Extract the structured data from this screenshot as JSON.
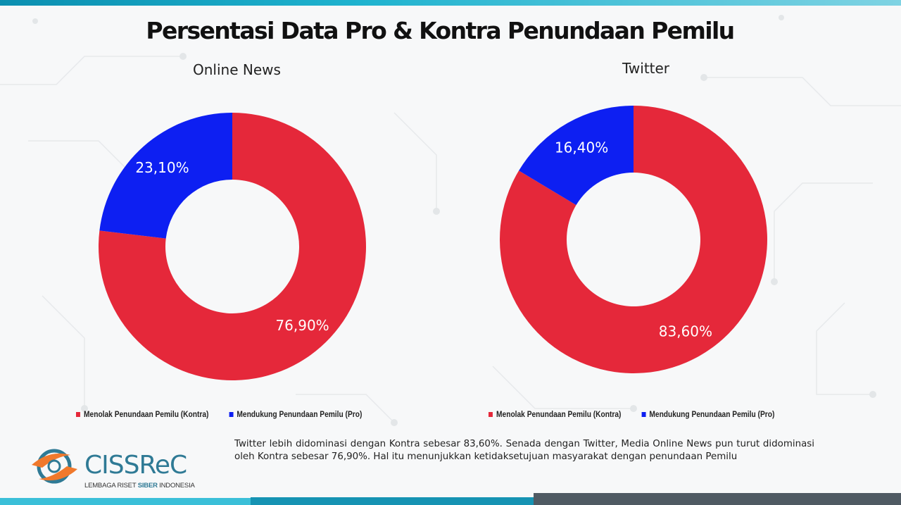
{
  "title": "Persentasi Data Pro & Kontra Penundaan Pemilu",
  "colors": {
    "kontra": "#e5283a",
    "pro": "#0d1ff2"
  },
  "legend": {
    "kontra": "Menolak Penundaan Pemilu (Kontra)",
    "pro": "Mendukung Penundaan Pemilu (Pro)"
  },
  "chart_data": [
    {
      "type": "pie",
      "title": "Online News",
      "categories": [
        "Menolak Penundaan Pemilu (Kontra)",
        "Mendukung Penundaan Pemilu (Pro)"
      ],
      "values": [
        76.9,
        23.1
      ],
      "labels": [
        "76,90%",
        "23,10%"
      ],
      "legend_position": "bottom"
    },
    {
      "type": "pie",
      "title": "Twitter",
      "categories": [
        "Menolak Penundaan Pemilu (Kontra)",
        "Mendukung Penundaan Pemilu (Pro)"
      ],
      "values": [
        83.6,
        16.4
      ],
      "labels": [
        "83,60%",
        "16,40%"
      ],
      "legend_position": "bottom"
    }
  ],
  "description": "Twitter lebih didominasi dengan Kontra sebesar 83,60%. Senada dengan Twitter, Media Online News pun turut didominasi oleh Kontra sebesar 76,90%. Hal itu menunjukkan ketidaksetujuan masyarakat dengan penundaan Pemilu",
  "logo": {
    "name": "CISSReC",
    "subtitle_prefix": "LEMBAGA RISET ",
    "subtitle_bold": "SIBER",
    "subtitle_suffix": " INDONESIA"
  }
}
